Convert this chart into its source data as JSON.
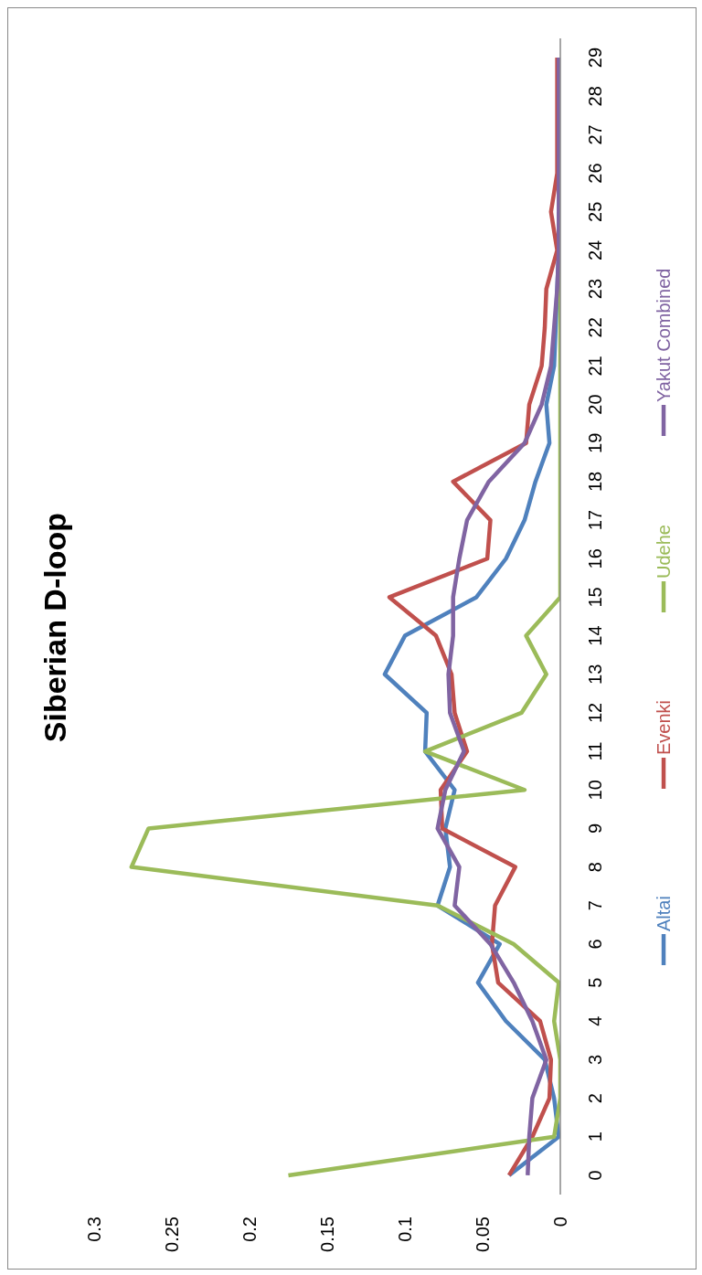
{
  "chart_data": {
    "type": "line",
    "title": "Siberian D-loop",
    "orientation": "horizontal",
    "categories": [
      "29",
      "28",
      "27",
      "26",
      "25",
      "24",
      "23",
      "22",
      "21",
      "20",
      "19",
      "18",
      "17",
      "16",
      "15",
      "14",
      "13",
      "12",
      "11",
      "10",
      "9",
      "8",
      "7",
      "6",
      "5",
      "4",
      "3",
      "2",
      "1",
      "0"
    ],
    "series": [
      {
        "name": "Altai",
        "color": "#4f81bd",
        "values": [
          null,
          null,
          null,
          null,
          0.001,
          0.001,
          0.002,
          0.003,
          0.004,
          0.009,
          0.007,
          0.016,
          0.023,
          0.035,
          0.054,
          0.1,
          0.113,
          0.086,
          0.087,
          0.068,
          0.074,
          0.071,
          0.079,
          0.039,
          0.053,
          0.035,
          0.01,
          0.004,
          0.001,
          0.033
        ]
      },
      {
        "name": "Evenki",
        "color": "#c0504d",
        "values": [
          0.002,
          0.002,
          0.002,
          0.002,
          0.006,
          0.002,
          0.009,
          0.01,
          0.012,
          0.02,
          0.022,
          0.069,
          0.045,
          0.047,
          0.11,
          0.08,
          0.07,
          0.068,
          0.06,
          0.077,
          0.076,
          0.029,
          0.042,
          0.044,
          0.04,
          0.013,
          0.006,
          0.007,
          0.018,
          0.033
        ]
      },
      {
        "name": "Udehe",
        "color": "#9bbb59",
        "values": [
          null,
          null,
          null,
          null,
          null,
          0,
          0,
          0,
          0,
          0,
          0,
          0,
          0,
          0,
          0,
          0.022,
          0.009,
          0.025,
          0.087,
          0.023,
          0.265,
          0.276,
          0.079,
          0.03,
          0.001,
          0.004,
          0,
          0,
          0.004,
          0.175
        ]
      },
      {
        "name": "Yakut Combined",
        "color": "#8064a2",
        "values": [
          0.001,
          0.001,
          0.001,
          0.001,
          0.001,
          0.001,
          0.002,
          0.004,
          0.006,
          0.012,
          0.023,
          0.046,
          0.06,
          0.065,
          0.069,
          0.069,
          0.072,
          0.071,
          0.062,
          0.074,
          0.079,
          0.065,
          0.068,
          0.045,
          0.03,
          0.018,
          0.009,
          0.018,
          0.02,
          0.021
        ]
      }
    ],
    "xlim": [
      0.3,
      0
    ],
    "xticks": [
      0,
      0.05,
      0.1,
      0.15,
      0.2,
      0.25,
      0.3
    ],
    "legend": "right"
  }
}
